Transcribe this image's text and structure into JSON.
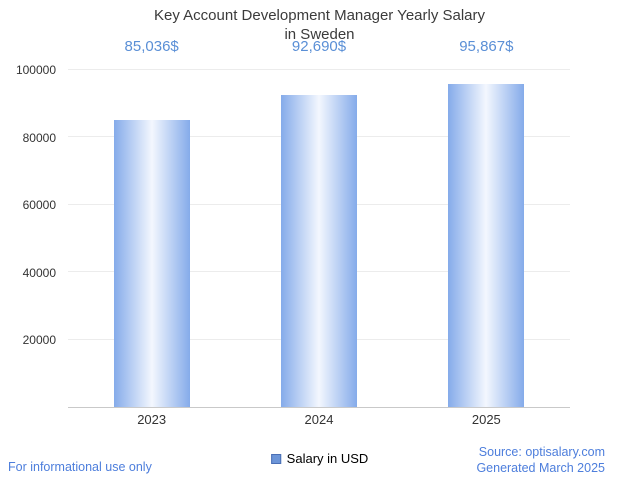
{
  "title": {
    "line1": "Key Account Development Manager Yearly Salary",
    "line2": "in Sweden"
  },
  "chart_data": {
    "type": "bar",
    "title": "Key Account Development Manager Yearly Salary in Sweden",
    "categories": [
      "2023",
      "2024",
      "2025"
    ],
    "values": [
      85036,
      92690,
      95867
    ],
    "value_labels": [
      "85,036$",
      "92,690$",
      "95,867$"
    ],
    "series_name": "Salary in USD",
    "xlabel": "",
    "ylabel": "",
    "ylim": [
      0,
      100000
    ],
    "yticks": [
      20000,
      40000,
      60000,
      80000,
      100000
    ],
    "ytick_labels": [
      "20000",
      "40000",
      "60000",
      "80000",
      "100000"
    ],
    "grid": true,
    "legend_position": "bottom"
  },
  "legend": {
    "label": "Salary in USD"
  },
  "footer": {
    "left": "For informational use only",
    "source": "Source: optisalary.com",
    "generated": "Generated March 2025"
  },
  "colors": {
    "bar_edge": "#85abea",
    "bar_center": "#f3f7fe",
    "value_label": "#5a8fd6",
    "footer_text": "#4d7edc",
    "title_text": "#3b3b3b",
    "axis_line": "#c9c9c9",
    "gridline": "#ececec",
    "legend_swatch": "#6c95d8"
  }
}
